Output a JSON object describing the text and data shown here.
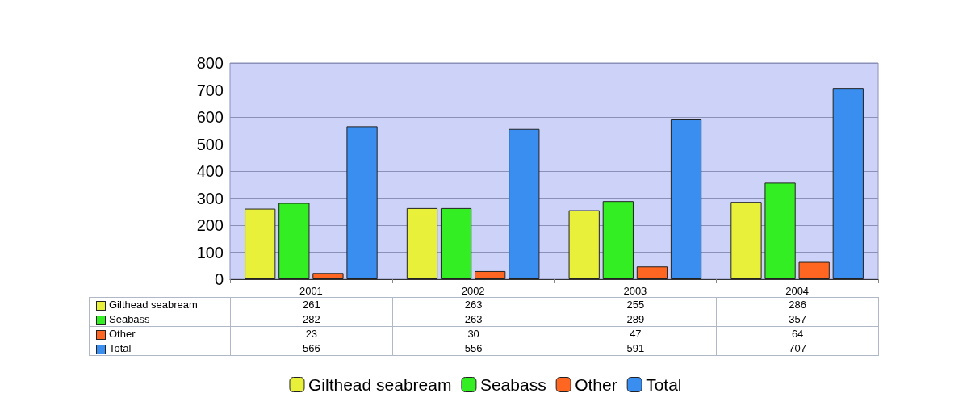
{
  "chart_data": {
    "type": "bar",
    "categories": [
      "2001",
      "2002",
      "2003",
      "2004"
    ],
    "series": [
      {
        "name": "Gilthead seabream",
        "color": "#e8f03a",
        "values": [
          261,
          263,
          255,
          286
        ]
      },
      {
        "name": "Seabass",
        "color": "#33ee22",
        "values": [
          282,
          263,
          289,
          357
        ]
      },
      {
        "name": "Other",
        "color": "#ff6622",
        "values": [
          23,
          30,
          47,
          64
        ]
      },
      {
        "name": "Total",
        "color": "#3a8ef0",
        "values": [
          566,
          556,
          591,
          707
        ]
      }
    ],
    "ylim": [
      0,
      800
    ],
    "yticks": [
      0,
      100,
      200,
      300,
      400,
      500,
      600,
      700,
      800
    ],
    "grid": "y",
    "legend": "bottom",
    "data_labels": true
  }
}
